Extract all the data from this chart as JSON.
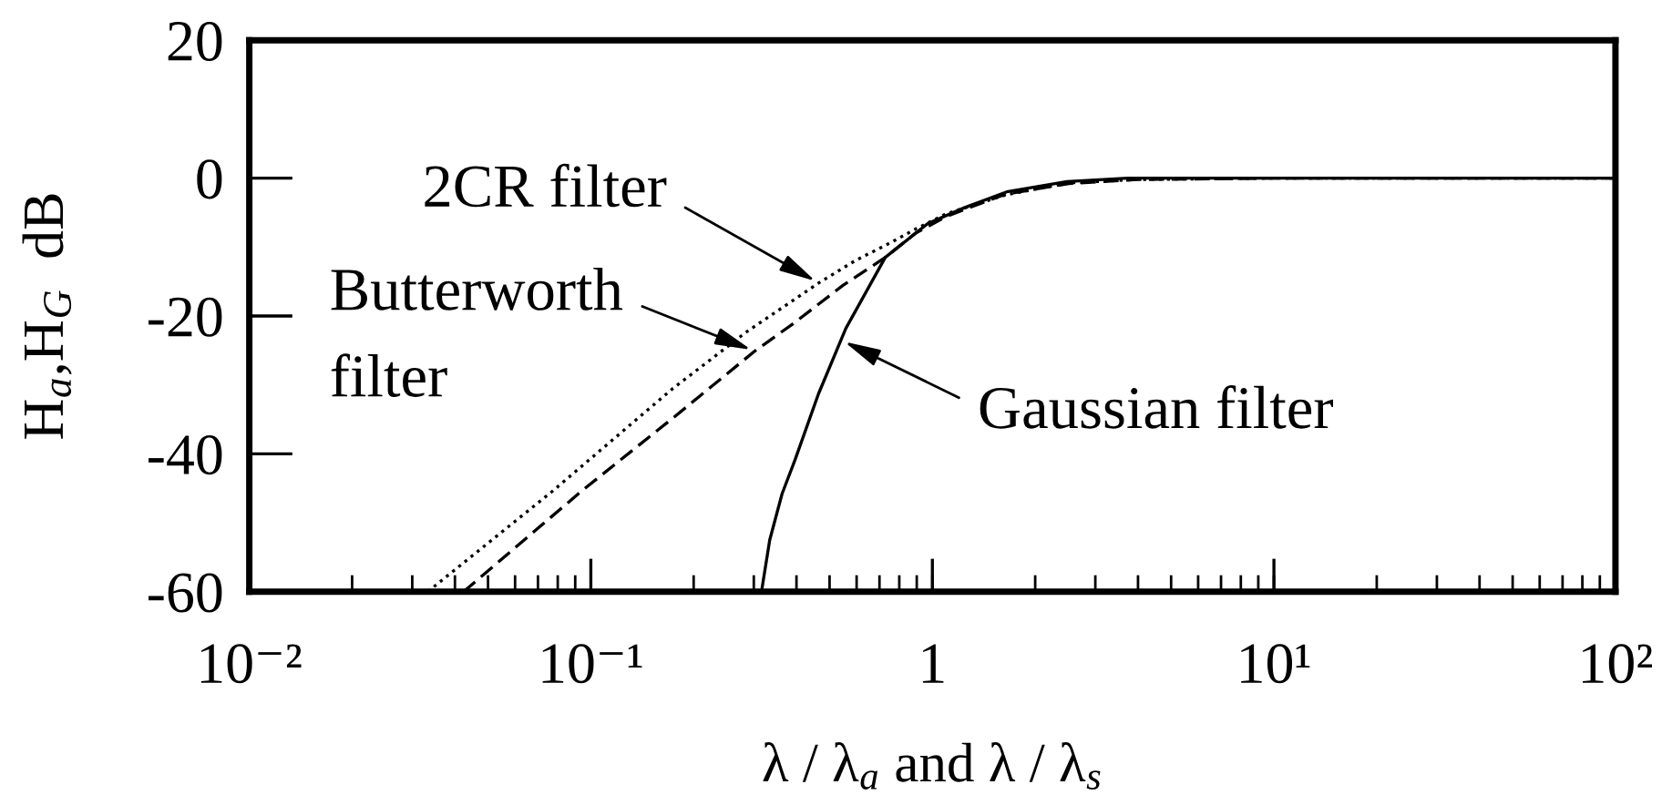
{
  "chart_data": {
    "type": "line",
    "xlabel": "λ / λ$_{a}$ and λ / λ$_{s}$",
    "ylabel": "H$_{a}$,H$_{G}$  dB",
    "log": "x",
    "grid": false,
    "xlim": [
      0.01,
      100
    ],
    "ylim": [
      -60,
      20
    ],
    "xticks": [
      {
        "value": 0.01,
        "label": "10⁻²"
      },
      {
        "value": 0.1,
        "label": "10⁻¹"
      },
      1,
      {
        "value": 10,
        "label": "10¹"
      },
      {
        "value": 100,
        "label": "10²"
      }
    ],
    "yticks": [
      -60,
      -40,
      -20,
      0,
      20
    ],
    "series": [
      {
        "color": "#000000",
        "line_style": "dotted",
        "x": [
          0.0333,
          0.0773,
          0.174,
          0.222,
          0.284,
          0.465,
          0.593,
          0.759,
          0.892,
          1.095,
          1.343,
          1.647,
          2.51,
          3.98,
          10,
          100
        ],
        "values": [
          -60,
          -45.4,
          -30.5,
          -26.5,
          -22.4,
          -15.2,
          -12.0,
          -9.3,
          -7.4,
          -5.2,
          -3.8,
          -2.4,
          -0.7,
          -0.2,
          0,
          0
        ]
      },
      {
        "color": "#000000",
        "line_style": "dashed",
        "x": [
          0.0424,
          0.0945,
          0.174,
          0.302,
          0.394,
          0.546,
          0.728,
          0.892,
          1.095,
          1.343,
          1.647,
          2.51,
          3.98,
          10,
          100
        ],
        "values": [
          -60,
          -45.3,
          -34.8,
          -25.1,
          -21.0,
          -15.6,
          -11.5,
          -8.0,
          -5.6,
          -3.9,
          -2.3,
          -0.8,
          -0.2,
          0,
          0
        ]
      },
      {
        "color": "#000000",
        "line_style": "solid",
        "x": [
          0.316,
          0.334,
          0.363,
          0.396,
          0.464,
          0.558,
          0.728,
          0.969,
          1.24,
          1.65,
          2.48,
          3.73,
          10,
          100
        ],
        "values": [
          -60,
          -52.5,
          -45.8,
          -40.9,
          -31.3,
          -21.8,
          -11.5,
          -6.6,
          -4.3,
          -2.0,
          -0.5,
          0,
          0,
          0
        ]
      }
    ],
    "annotations": [
      {
        "text": "2CR filter",
        "x": 0.465,
        "y": -15.2
      },
      {
        "text": "Butterworth\nfilter",
        "x": 0.302,
        "y": -25.1
      },
      {
        "text": "Gaussian filter",
        "x": 0.54,
        "y": -23.5
      }
    ]
  }
}
